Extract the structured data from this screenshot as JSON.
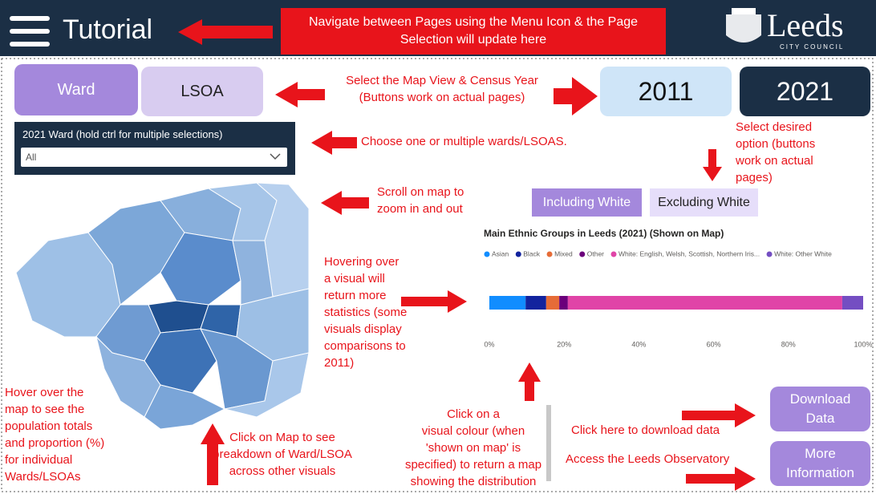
{
  "header": {
    "title": "Tutorial",
    "nav_note": [
      "Navigate between Pages using the Menu Icon & the Page",
      "Selection will update here"
    ],
    "logo": "Leeds",
    "logo_sub": "CITY COUNCIL"
  },
  "map_view_buttons": [
    "Ward",
    "LSOA"
  ],
  "year_buttons": [
    "2011",
    "2021"
  ],
  "slicer": {
    "label": "2021 Ward (hold ctrl for multiple selections)",
    "value": "All"
  },
  "filter_buttons": [
    "Including White",
    "Excluding White"
  ],
  "action_buttons": [
    [
      "Download",
      "Data"
    ],
    [
      "More",
      "Information"
    ]
  ],
  "annotations": [
    [
      "Select the Map View & Census Year",
      "(Buttons work on actual pages)"
    ],
    [
      "Choose one or multiple wards/LSOAS."
    ],
    [
      "Select desired",
      "option (buttons",
      "work on actual",
      "pages)"
    ],
    [
      "Scroll on map to",
      "zoom in and out"
    ],
    [
      "Hovering over",
      "a visual will",
      "return more",
      "statistics (some",
      "visuals display",
      "comparisons to",
      "2011)"
    ],
    [
      "Hover over the",
      "map to see the",
      "population totals",
      "and proportion (%)",
      "for individual",
      "Wards/LSOAs"
    ],
    [
      "Click on Map to see",
      "breakdown of Ward/LSOA",
      "across other visuals"
    ],
    [
      "Click on a",
      "visual colour (when",
      "'shown on map' is",
      "specified) to return a map",
      "showing the distribution"
    ],
    [
      "Click here to download data"
    ],
    [
      "Access the Leeds Observatory"
    ]
  ],
  "chart_data": {
    "type": "stacked_bar_100",
    "title": "Main Ethnic Groups in Leeds (2021) (Shown on Map)",
    "series": [
      {
        "name": "Asian",
        "color": "#118dff",
        "values": [
          9.7
        ]
      },
      {
        "name": "Black",
        "color": "#12239e",
        "values": [
          5.5
        ]
      },
      {
        "name": "Mixed",
        "color": "#e66c37",
        "values": [
          3.5
        ]
      },
      {
        "name": "Other",
        "color": "#6b007b",
        "values": [
          2.3
        ]
      },
      {
        "name": "White: English, Welsh, Scottish, Northern Iris...",
        "color": "#e044a7",
        "values": [
          73.4
        ]
      },
      {
        "name": "White: Other White",
        "color": "#744ec2",
        "values": [
          5.6
        ]
      }
    ],
    "xlim": [
      0,
      100
    ],
    "xticks": [
      {
        "value": 0,
        "label": "0%"
      },
      {
        "value": 20,
        "label": "20%"
      },
      {
        "value": 40,
        "label": "40%"
      },
      {
        "value": 60,
        "label": "60%"
      },
      {
        "value": 80,
        "label": "80%"
      },
      {
        "value": 100,
        "label": "100%"
      }
    ]
  }
}
